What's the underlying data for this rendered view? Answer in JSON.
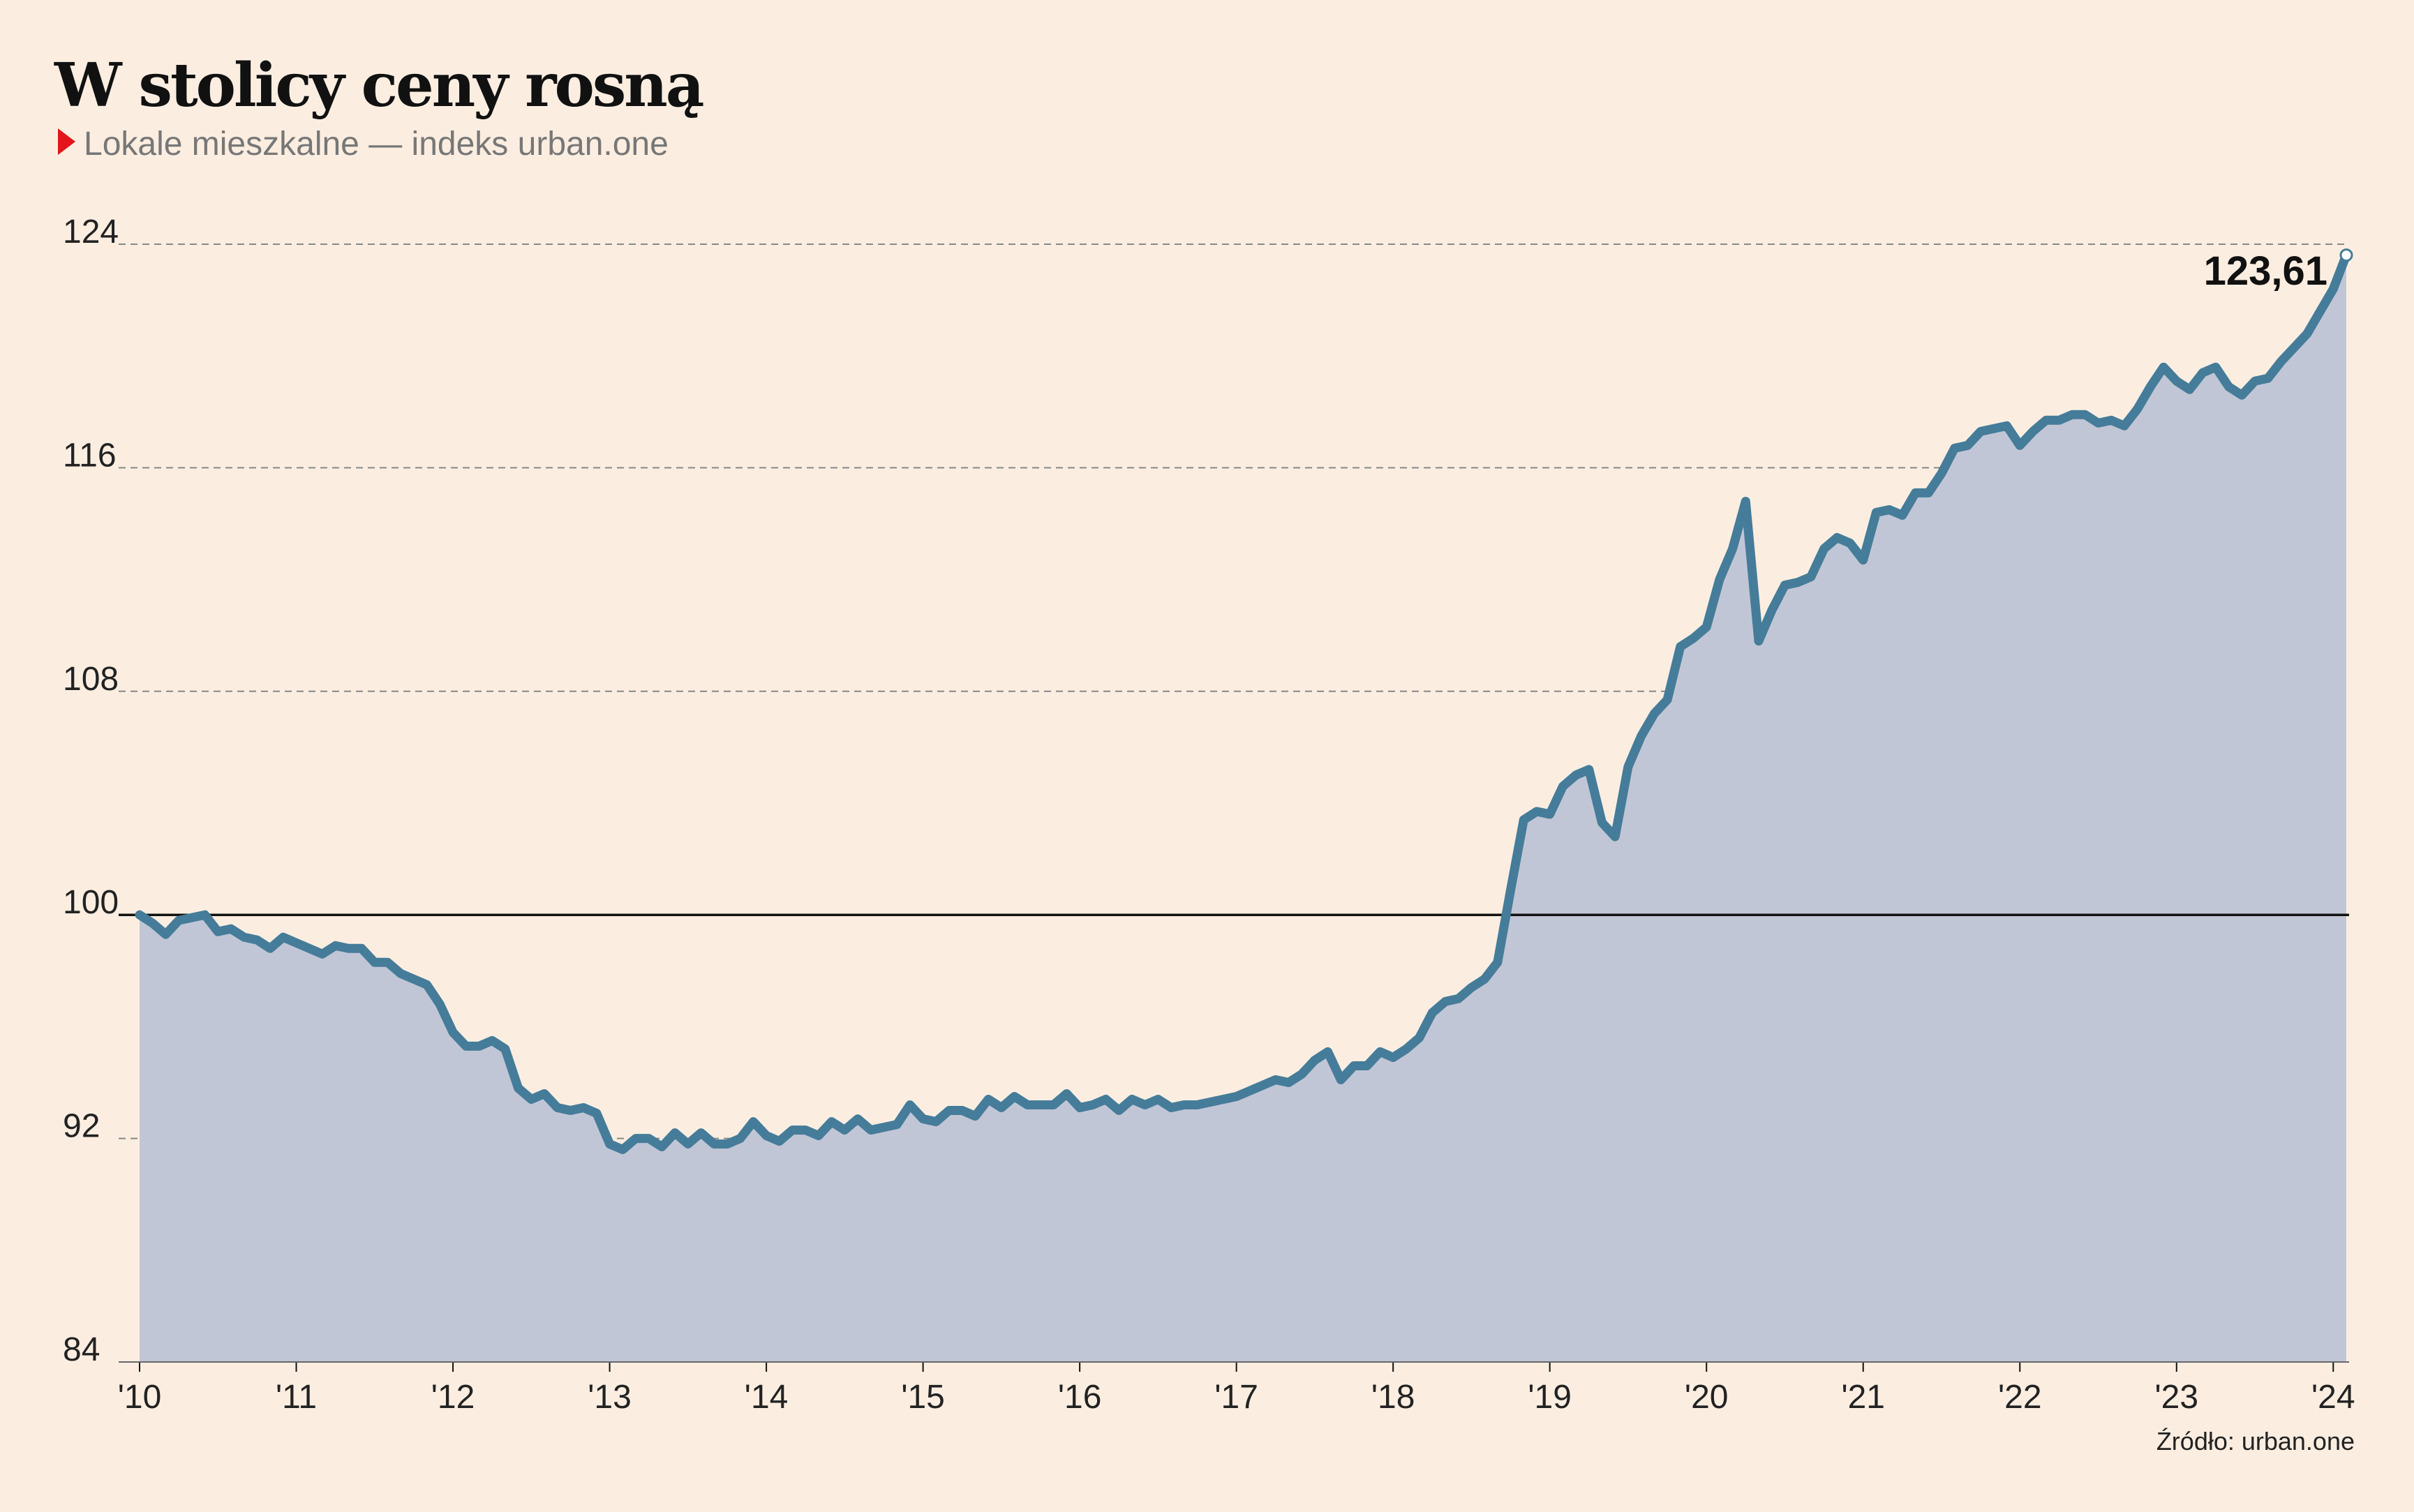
{
  "header": {
    "title": "W stolicy ceny rosną",
    "subtitle": "Lokale mieszkalne — indeks urban.one",
    "subtitle_marker_color": "#E3141C"
  },
  "source": "Źródło: urban.one",
  "end_label": "123,61",
  "colors": {
    "background": "#FBEEE1",
    "line": "#457C99",
    "area": "#C1C6D6",
    "gridline": "#888888",
    "baseline": "#111111"
  },
  "chart_data": {
    "type": "area",
    "x_start": "2010-01",
    "x_end": "2024-01",
    "frequency": "monthly",
    "ylim": [
      84,
      124
    ],
    "yticks": [
      84,
      92,
      100,
      108,
      116,
      124
    ],
    "ytick_labels": [
      "84",
      "92",
      "100",
      "108",
      "116",
      "124"
    ],
    "baseline": 100,
    "grid": "horizontal dashed",
    "xtick_labels": [
      "'10",
      "'11",
      "'12",
      "'13",
      "'14",
      "'15",
      "'16",
      "'17",
      "'18",
      "'19",
      "'20",
      "'21",
      "'22",
      "'23",
      "'24"
    ],
    "series": [
      {
        "values": [
          100.0,
          99.7,
          99.3,
          99.8,
          99.9,
          100.0,
          99.4,
          99.5,
          99.2,
          99.1,
          98.8,
          99.2,
          99.0,
          98.8,
          98.6,
          98.9,
          98.8,
          98.8,
          98.3,
          98.3,
          97.9,
          97.7,
          97.5,
          96.8,
          95.8,
          95.3,
          95.3,
          95.5,
          95.2,
          93.8,
          93.4,
          93.6,
          93.1,
          93.0,
          93.1,
          92.9,
          91.8,
          91.6,
          92.0,
          92.0,
          91.7,
          92.2,
          91.8,
          92.2,
          91.8,
          91.8,
          92.0,
          92.6,
          92.1,
          91.9,
          92.3,
          92.3,
          92.1,
          92.6,
          92.3,
          92.7,
          92.3,
          92.4,
          92.5,
          93.2,
          92.7,
          92.6,
          93.0,
          93.0,
          92.8,
          93.4,
          93.1,
          93.5,
          93.2,
          93.2,
          93.2,
          93.6,
          93.1,
          93.2,
          93.4,
          93.0,
          93.4,
          93.2,
          93.4,
          93.1,
          93.2,
          93.2,
          93.3,
          93.4,
          93.5,
          93.7,
          93.9,
          94.1,
          94.0,
          94.3,
          94.8,
          95.1,
          94.1,
          94.6,
          94.6,
          95.1,
          94.9,
          95.2,
          95.6,
          96.5,
          96.9,
          97.0,
          97.4,
          97.7,
          98.3,
          100.9,
          103.4,
          103.7,
          103.6,
          104.6,
          105.0,
          105.2,
          103.3,
          102.8,
          105.3,
          106.4,
          107.2,
          107.7,
          109.6,
          109.9,
          110.3,
          112.0,
          113.1,
          114.8,
          109.8,
          110.9,
          111.8,
          111.9,
          112.1,
          113.1,
          113.5,
          113.3,
          112.7,
          114.4,
          114.5,
          114.3,
          115.1,
          115.1,
          115.8,
          116.7,
          116.8,
          117.3,
          117.4,
          117.5,
          116.8,
          117.3,
          117.7,
          117.7,
          117.9,
          117.9,
          117.6,
          117.7,
          117.5,
          118.1,
          118.9,
          119.6,
          119.1,
          118.8,
          119.4,
          119.6,
          118.9,
          118.6,
          119.1,
          119.2,
          119.8,
          120.3,
          120.8,
          121.6,
          122.4,
          123.61
        ]
      }
    ]
  }
}
